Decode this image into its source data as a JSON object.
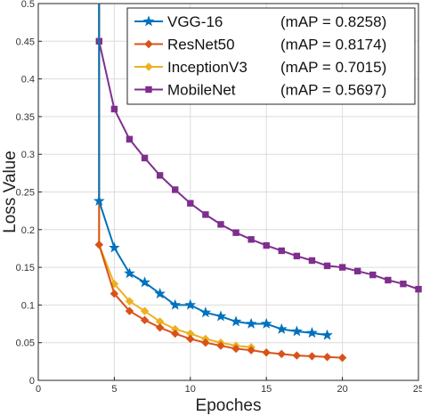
{
  "chart_data": {
    "type": "line",
    "xlabel": "Epoches",
    "ylabel": "Loss Value",
    "xlim": [
      0,
      25
    ],
    "ylim": [
      0,
      0.5
    ],
    "xticks": [
      0,
      5,
      10,
      15,
      20,
      25
    ],
    "xtick_labels": [
      "0",
      "5",
      "10",
      "15",
      "20",
      "25"
    ],
    "yticks": [
      0,
      0.05,
      0.1,
      0.15,
      0.2,
      0.25,
      0.3,
      0.35,
      0.4,
      0.45,
      0.5
    ],
    "ytick_labels": [
      "0",
      "0.05",
      "0.1",
      "0.15",
      "0.2",
      "0.25",
      "0.3",
      "0.35",
      "0.4",
      "0.45",
      "0.5"
    ],
    "grid": true,
    "legend_position": "top-right",
    "series": [
      {
        "name": "VGG-16",
        "map_label": "(mAP = 0.8258)",
        "color": "#0072BD",
        "marker": "star",
        "x": [
          4,
          4,
          5,
          6,
          7,
          8,
          9,
          10,
          11,
          12,
          13,
          14,
          15,
          16,
          17,
          18,
          19
        ],
        "y": [
          0.5,
          0.238,
          0.176,
          0.142,
          0.13,
          0.115,
          0.1,
          0.1,
          0.09,
          0.085,
          0.078,
          0.075,
          0.075,
          0.068,
          0.065,
          0.063,
          0.06
        ]
      },
      {
        "name": "ResNet50",
        "map_label": "(mAP = 0.8174)",
        "color": "#D95319",
        "marker": "diamond",
        "x": [
          4,
          4,
          5,
          6,
          7,
          8,
          9,
          10,
          11,
          12,
          13,
          14,
          15,
          16,
          17,
          18,
          19,
          20
        ],
        "y": [
          0.5,
          0.18,
          0.115,
          0.092,
          0.08,
          0.07,
          0.062,
          0.055,
          0.05,
          0.046,
          0.042,
          0.04,
          0.037,
          0.035,
          0.033,
          0.032,
          0.031,
          0.03
        ]
      },
      {
        "name": "InceptionV3",
        "map_label": "(mAP = 0.7015)",
        "color": "#EDB120",
        "marker": "diamond",
        "x": [
          4,
          4,
          5,
          6,
          7,
          8,
          9,
          10,
          11,
          12,
          13,
          14
        ],
        "y": [
          0.5,
          0.18,
          0.128,
          0.105,
          0.092,
          0.078,
          0.068,
          0.062,
          0.055,
          0.05,
          0.046,
          0.044
        ]
      },
      {
        "name": "MobileNet",
        "map_label": "(mAP = 0.5697)",
        "color": "#7E2F8E",
        "marker": "square",
        "x": [
          4,
          4,
          5,
          6,
          7,
          8,
          9,
          10,
          11,
          12,
          13,
          14,
          15,
          16,
          17,
          18,
          19,
          20,
          21,
          22,
          23,
          24,
          25
        ],
        "y": [
          0.5,
          0.45,
          0.36,
          0.32,
          0.295,
          0.272,
          0.253,
          0.235,
          0.22,
          0.207,
          0.196,
          0.187,
          0.179,
          0.172,
          0.165,
          0.159,
          0.152,
          0.15,
          0.145,
          0.14,
          0.133,
          0.128,
          0.121
        ]
      }
    ]
  }
}
